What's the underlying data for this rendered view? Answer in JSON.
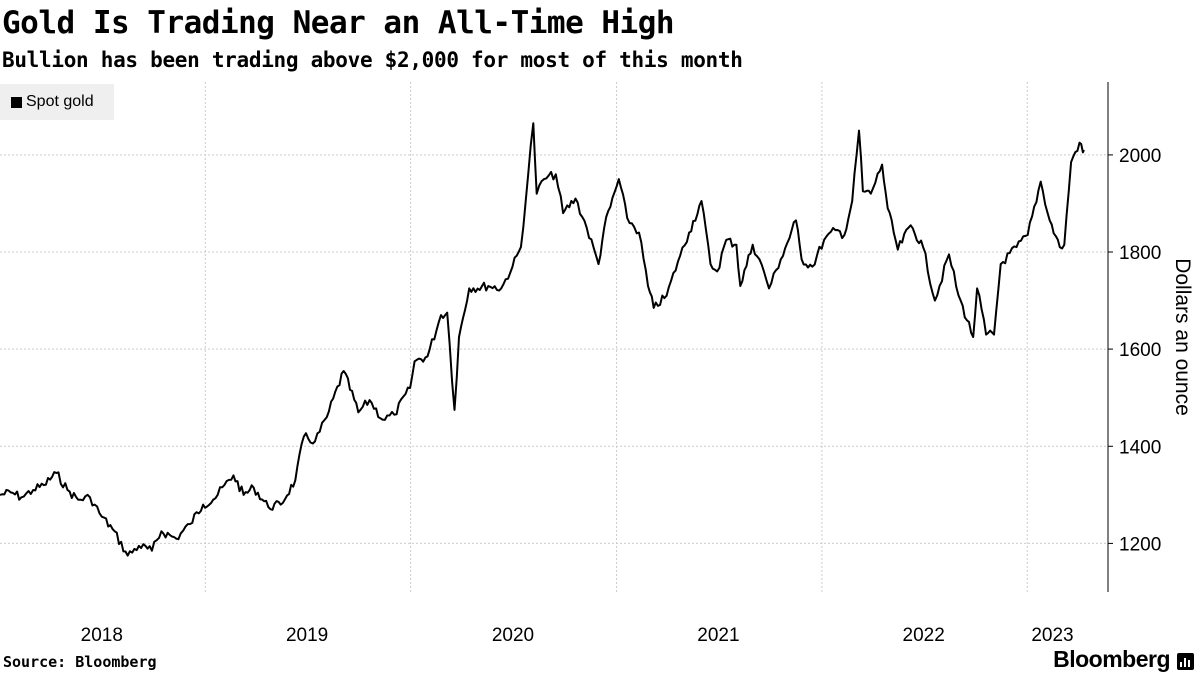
{
  "header": {
    "title": "Gold Is Trading Near an All-Time High",
    "subtitle": "Bullion has been trading above $2,000 for most of this month"
  },
  "footer": {
    "source": "Source: Bloomberg",
    "brand": "Bloomberg"
  },
  "colors": {
    "line": "#000000",
    "grid": "#cccccc",
    "legend_bg": "#efefef"
  },
  "chart_data": {
    "type": "line",
    "ylabel": "Dollars an ounce",
    "y_axis_side": "right",
    "ylim": [
      1100,
      2150
    ],
    "yticks": [
      1200,
      1400,
      1600,
      1800,
      2000
    ],
    "xlim": [
      "2018-01-01",
      "2023-04-12"
    ],
    "xticks": [
      {
        "label": "2018",
        "date": "2018-07-01"
      },
      {
        "label": "2019",
        "date": "2019-07-01"
      },
      {
        "label": "2020",
        "date": "2020-07-01"
      },
      {
        "label": "2021",
        "date": "2021-07-01"
      },
      {
        "label": "2022",
        "date": "2022-07-01"
      },
      {
        "label": "2023",
        "date": "2023-02-15"
      }
    ],
    "gridlines_x": [
      "2019-01-01",
      "2020-01-01",
      "2021-01-01",
      "2022-01-01",
      "2023-01-01"
    ],
    "legend": {
      "position": "top-left"
    },
    "series": [
      {
        "name": "Spot gold",
        "points": [
          [
            "2018-01-01",
            1300
          ],
          [
            "2018-01-20",
            1305
          ],
          [
            "2018-02-08",
            1295
          ],
          [
            "2018-03-01",
            1310
          ],
          [
            "2018-03-20",
            1320
          ],
          [
            "2018-04-11",
            1345
          ],
          [
            "2018-05-01",
            1310
          ],
          [
            "2018-05-20",
            1290
          ],
          [
            "2018-06-10",
            1295
          ],
          [
            "2018-07-01",
            1255
          ],
          [
            "2018-07-20",
            1230
          ],
          [
            "2018-08-16",
            1175
          ],
          [
            "2018-09-05",
            1195
          ],
          [
            "2018-09-28",
            1185
          ],
          [
            "2018-10-15",
            1225
          ],
          [
            "2018-11-10",
            1210
          ],
          [
            "2018-12-05",
            1240
          ],
          [
            "2018-12-28",
            1280
          ],
          [
            "2019-01-15",
            1290
          ],
          [
            "2019-02-20",
            1340
          ],
          [
            "2019-03-10",
            1300
          ],
          [
            "2019-03-28",
            1315
          ],
          [
            "2019-04-23",
            1275
          ],
          [
            "2019-05-15",
            1280
          ],
          [
            "2019-06-10",
            1330
          ],
          [
            "2019-06-25",
            1420
          ],
          [
            "2019-07-15",
            1410
          ],
          [
            "2019-08-05",
            1460
          ],
          [
            "2019-09-04",
            1555
          ],
          [
            "2019-09-30",
            1470
          ],
          [
            "2019-10-20",
            1495
          ],
          [
            "2019-11-12",
            1455
          ],
          [
            "2019-12-03",
            1465
          ],
          [
            "2019-12-31",
            1520
          ],
          [
            "2020-01-08",
            1575
          ],
          [
            "2020-01-31",
            1585
          ],
          [
            "2020-02-24",
            1670
          ],
          [
            "2020-03-06",
            1675
          ],
          [
            "2020-03-19",
            1475
          ],
          [
            "2020-03-27",
            1625
          ],
          [
            "2020-04-14",
            1725
          ],
          [
            "2020-05-18",
            1730
          ],
          [
            "2020-06-10",
            1725
          ],
          [
            "2020-06-30",
            1770
          ],
          [
            "2020-07-15",
            1810
          ],
          [
            "2020-07-28",
            1960
          ],
          [
            "2020-08-06",
            2065
          ],
          [
            "2020-08-12",
            1920
          ],
          [
            "2020-08-25",
            1950
          ],
          [
            "2020-09-15",
            1960
          ],
          [
            "2020-09-28",
            1880
          ],
          [
            "2020-10-20",
            1910
          ],
          [
            "2020-11-09",
            1850
          ],
          [
            "2020-11-30",
            1775
          ],
          [
            "2020-12-10",
            1850
          ],
          [
            "2021-01-05",
            1950
          ],
          [
            "2021-01-20",
            1870
          ],
          [
            "2021-02-10",
            1840
          ],
          [
            "2021-02-26",
            1730
          ],
          [
            "2021-03-08",
            1685
          ],
          [
            "2021-03-31",
            1710
          ],
          [
            "2021-04-20",
            1780
          ],
          [
            "2021-05-10",
            1840
          ],
          [
            "2021-06-01",
            1905
          ],
          [
            "2021-06-17",
            1775
          ],
          [
            "2021-06-29",
            1760
          ],
          [
            "2021-07-15",
            1825
          ],
          [
            "2021-08-02",
            1815
          ],
          [
            "2021-08-09",
            1730
          ],
          [
            "2021-08-31",
            1815
          ],
          [
            "2021-09-20",
            1760
          ],
          [
            "2021-09-29",
            1725
          ],
          [
            "2021-10-20",
            1785
          ],
          [
            "2021-11-16",
            1865
          ],
          [
            "2021-11-26",
            1785
          ],
          [
            "2021-12-15",
            1770
          ],
          [
            "2022-01-05",
            1825
          ],
          [
            "2022-01-25",
            1845
          ],
          [
            "2022-02-10",
            1835
          ],
          [
            "2022-02-24",
            1905
          ],
          [
            "2022-03-08",
            2050
          ],
          [
            "2022-03-15",
            1925
          ],
          [
            "2022-03-29",
            1920
          ],
          [
            "2022-04-18",
            1980
          ],
          [
            "2022-04-28",
            1890
          ],
          [
            "2022-05-16",
            1805
          ],
          [
            "2022-06-08",
            1855
          ],
          [
            "2022-06-30",
            1810
          ],
          [
            "2022-07-21",
            1700
          ],
          [
            "2022-08-15",
            1795
          ],
          [
            "2022-09-01",
            1710
          ],
          [
            "2022-09-27",
            1625
          ],
          [
            "2022-10-04",
            1725
          ],
          [
            "2022-10-20",
            1630
          ],
          [
            "2022-11-03",
            1630
          ],
          [
            "2022-11-15",
            1775
          ],
          [
            "2022-12-13",
            1810
          ],
          [
            "2023-01-02",
            1835
          ],
          [
            "2023-01-25",
            1945
          ],
          [
            "2023-02-10",
            1865
          ],
          [
            "2023-02-28",
            1810
          ],
          [
            "2023-03-08",
            1815
          ],
          [
            "2023-03-20",
            1985
          ],
          [
            "2023-04-04",
            2025
          ],
          [
            "2023-04-10",
            2005
          ],
          [
            "2023-04-12",
            2010
          ]
        ]
      }
    ]
  }
}
